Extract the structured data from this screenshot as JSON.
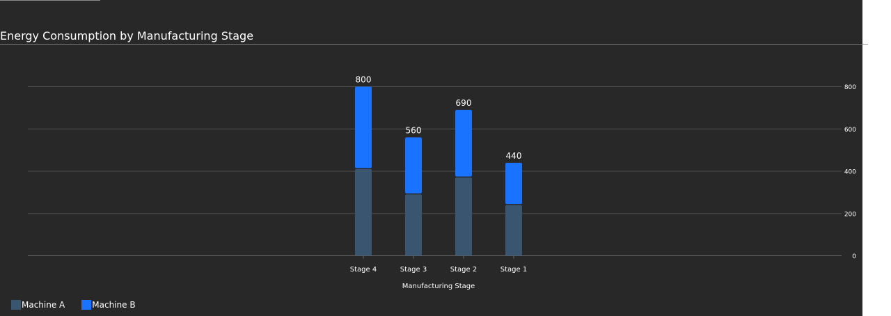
{
  "page": {
    "title": "Energy Consumption by Manufacturing Stage"
  },
  "chart_data": {
    "type": "bar",
    "stacked": true,
    "title": "Energy Consumption by Manufacturing Stage",
    "xlabel": "Manufacturing Stage",
    "ylabel": "",
    "categories": [
      "Stage 4",
      "Stage 3",
      "Stage 2",
      "Stage 1"
    ],
    "series": [
      {
        "name": "Machine A",
        "values": [
          410,
          290,
          370,
          240
        ],
        "color": "#3a5570"
      },
      {
        "name": "Machine B",
        "values": [
          390,
          270,
          320,
          200
        ],
        "color": "#1a73ff"
      }
    ],
    "totals": [
      "800",
      "560",
      "690",
      "440"
    ],
    "yticks": [
      "0",
      "200",
      "400",
      "600",
      "800"
    ],
    "ylim": [
      0,
      800
    ],
    "y_axis_position": "right",
    "grid": true,
    "legend_position": "bottom-left"
  }
}
